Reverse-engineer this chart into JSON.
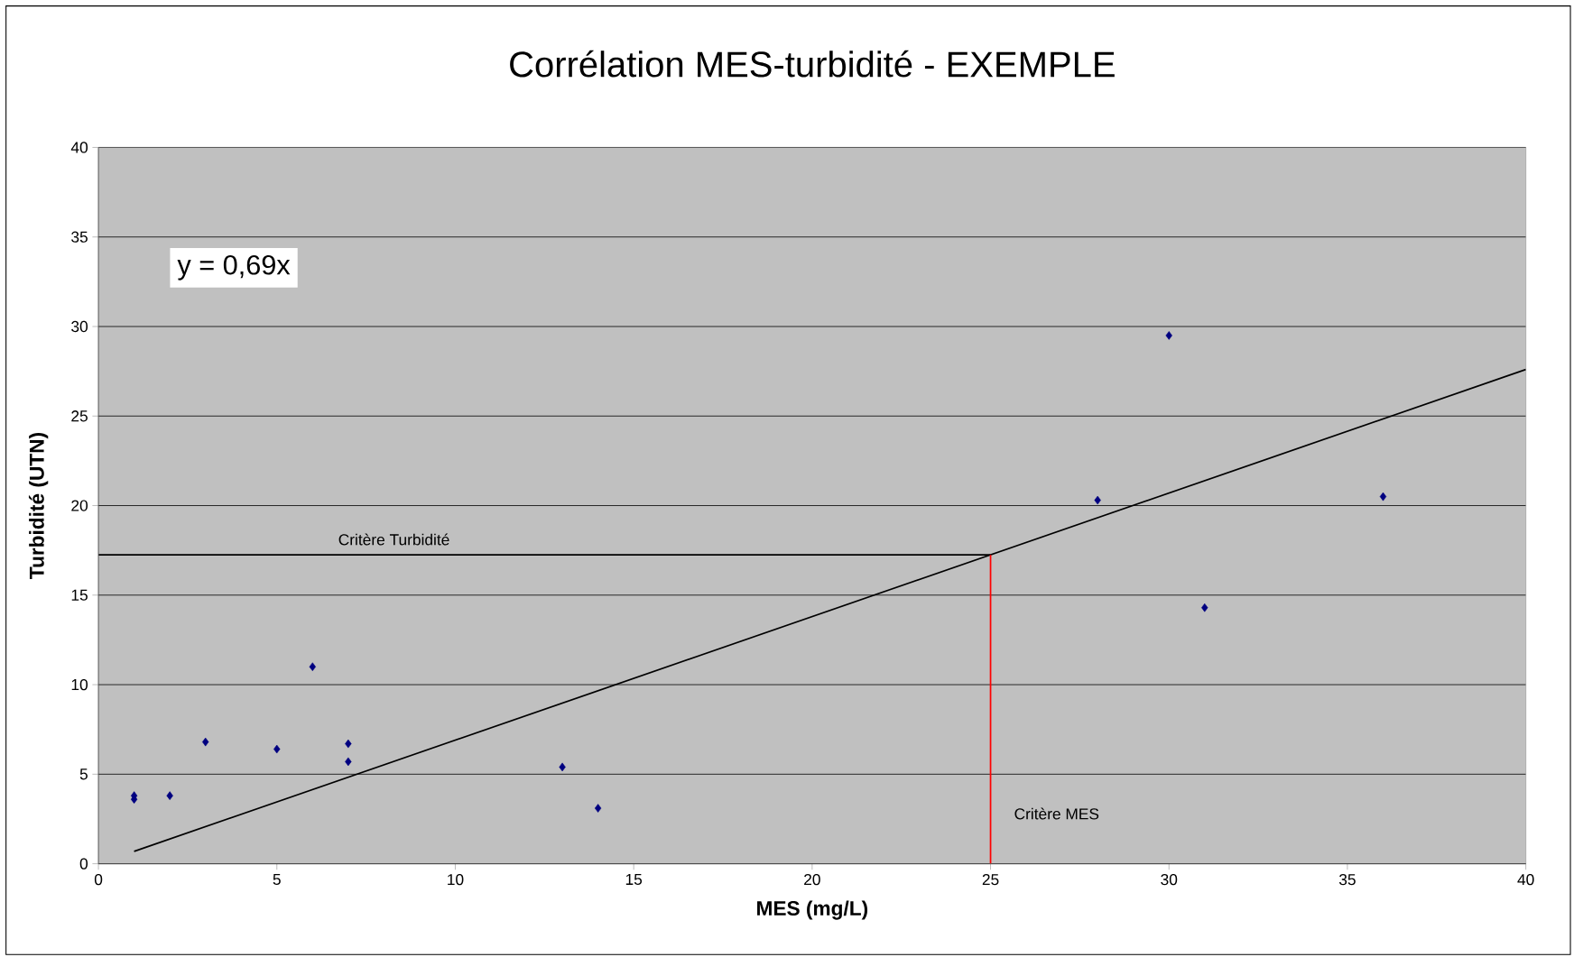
{
  "chart_data": {
    "type": "scatter",
    "title": "Corrélation MES-turbidité - EXEMPLE",
    "xlabel": "MES (mg/L)",
    "ylabel": "Turbidité (UTN)",
    "xlim": [
      0,
      40
    ],
    "ylim": [
      0,
      40
    ],
    "xticks": [
      0,
      5,
      10,
      15,
      20,
      25,
      30,
      35,
      40
    ],
    "yticks": [
      0,
      5,
      10,
      15,
      20,
      25,
      30,
      35,
      40
    ],
    "grid": "y",
    "marker": "diamond",
    "series": [
      {
        "color": "#000080",
        "x": [
          1,
          1,
          2,
          3,
          5,
          6,
          7,
          7,
          13,
          14,
          28,
          30,
          31,
          36
        ],
        "values": [
          3.8,
          3.6,
          3.8,
          6.8,
          6.4,
          11.0,
          6.7,
          5.7,
          5.4,
          3.1,
          20.3,
          29.5,
          14.3,
          20.5
        ]
      },
      {
        "type": "line",
        "color": "#000000",
        "marker": "none",
        "x": [
          1,
          40
        ],
        "values": [
          0.69,
          27.6
        ]
      }
    ],
    "ref_lines": [
      {
        "axis": "y",
        "value": 17.25,
        "label": "Critère Turbidité",
        "color": "#000000"
      },
      {
        "axis": "x",
        "value": 25,
        "label": "Critère MES",
        "color": "#ff0000"
      }
    ],
    "annotations": [
      "y = 0,69x"
    ]
  }
}
